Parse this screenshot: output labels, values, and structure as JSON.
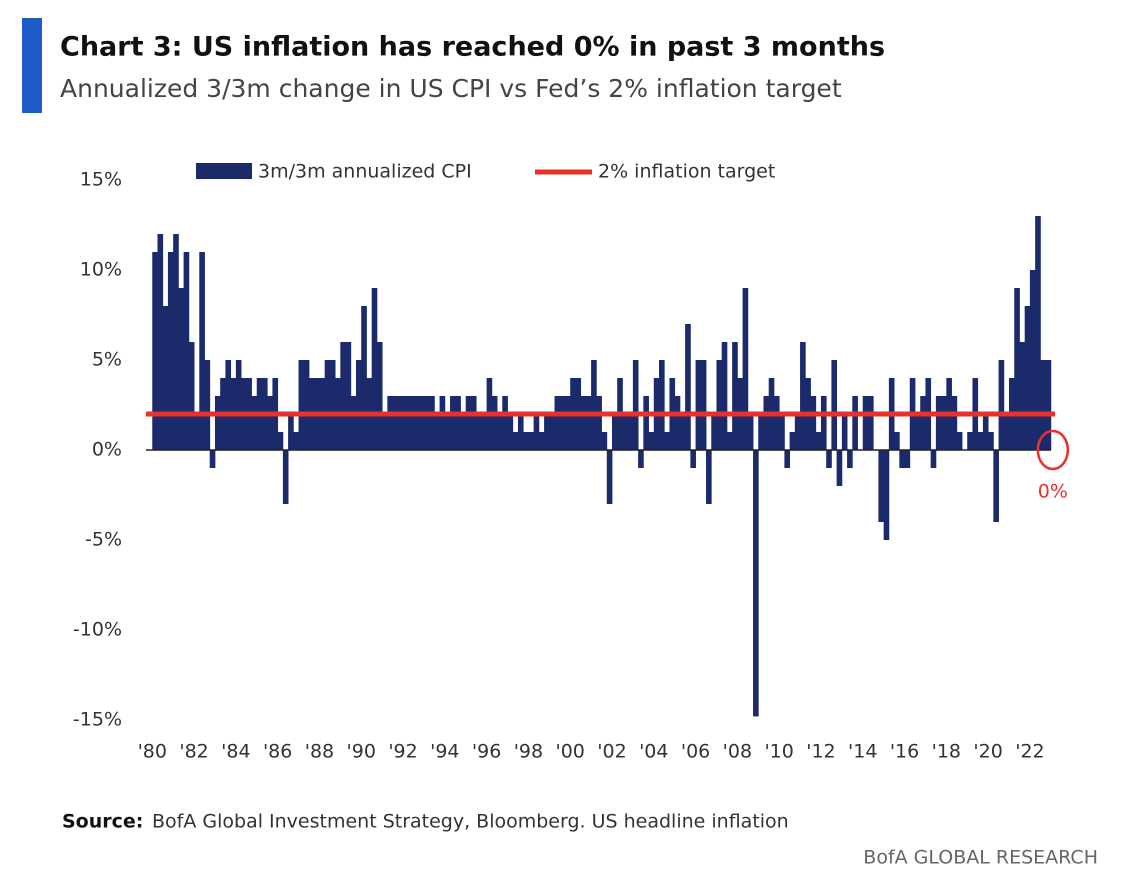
{
  "chart_data": {
    "type": "bar",
    "title": "Chart 3: US inflation has reached 0% in past 3 months",
    "subtitle": "Annualized 3/3m change in US CPI vs Fed’s 2% inflation target",
    "x": [
      1980,
      1980.25,
      1980.5,
      1980.75,
      1981,
      1981.25,
      1981.5,
      1981.75,
      1982,
      1982.25,
      1982.5,
      1982.75,
      1983,
      1983.25,
      1983.5,
      1983.75,
      1984,
      1984.25,
      1984.5,
      1984.75,
      1985,
      1985.25,
      1985.5,
      1985.75,
      1986,
      1986.25,
      1986.5,
      1986.75,
      1987,
      1987.25,
      1987.5,
      1987.75,
      1988,
      1988.25,
      1988.5,
      1988.75,
      1989,
      1989.25,
      1989.5,
      1989.75,
      1990,
      1990.25,
      1990.5,
      1990.75,
      1991,
      1991.25,
      1991.5,
      1991.75,
      1992,
      1992.25,
      1992.5,
      1992.75,
      1993,
      1993.25,
      1993.5,
      1993.75,
      1994,
      1994.25,
      1994.5,
      1994.75,
      1995,
      1995.25,
      1995.5,
      1995.75,
      1996,
      1996.25,
      1996.5,
      1996.75,
      1997,
      1997.25,
      1997.5,
      1997.75,
      1998,
      1998.25,
      1998.5,
      1998.75,
      1999,
      1999.25,
      1999.5,
      1999.75,
      2000,
      2000.25,
      2000.5,
      2000.75,
      2001,
      2001.25,
      2001.5,
      2001.75,
      2002,
      2002.25,
      2002.5,
      2002.75,
      2003,
      2003.25,
      2003.5,
      2003.75,
      2004,
      2004.25,
      2004.5,
      2004.75,
      2005,
      2005.25,
      2005.5,
      2005.75,
      2006,
      2006.25,
      2006.5,
      2006.75,
      2007,
      2007.25,
      2007.5,
      2007.75,
      2008,
      2008.25,
      2008.5,
      2008.75,
      2009,
      2009.25,
      2009.5,
      2009.75,
      2010,
      2010.25,
      2010.5,
      2010.75,
      2011,
      2011.25,
      2011.5,
      2011.75,
      2012,
      2012.25,
      2012.5,
      2012.75,
      2013,
      2013.25,
      2013.5,
      2013.75,
      2014,
      2014.25,
      2014.5,
      2014.75,
      2015,
      2015.25,
      2015.5,
      2015.75,
      2016,
      2016.25,
      2016.5,
      2016.75,
      2017,
      2017.25,
      2017.5,
      2017.75,
      2018,
      2018.25,
      2018.5,
      2018.75,
      2019,
      2019.25,
      2019.5,
      2019.75,
      2020,
      2020.25,
      2020.5,
      2020.75,
      2021,
      2021.25,
      2021.5,
      2021.75,
      2022,
      2022.25,
      2022.5,
      2022.75,
      2023
    ],
    "series": [
      {
        "name": "3m/3m annualized CPI",
        "color": "#1b2a6b",
        "values": [
          11,
          12,
          8,
          11,
          12,
          9,
          11,
          6,
          2,
          11,
          5,
          -1,
          3,
          4,
          5,
          4,
          5,
          4,
          4,
          3,
          4,
          4,
          3,
          4,
          1,
          -3,
          2,
          1,
          5,
          5,
          4,
          4,
          4,
          5,
          5,
          4,
          6,
          6,
          3,
          5,
          8,
          4,
          9,
          6,
          2,
          3,
          3,
          3,
          3,
          3,
          3,
          3,
          3,
          3,
          2,
          3,
          2,
          3,
          3,
          2,
          3,
          3,
          2,
          2,
          4,
          3,
          2,
          3,
          2,
          1,
          2,
          1,
          1,
          2,
          1,
          2,
          2,
          3,
          3,
          3,
          4,
          4,
          3,
          3,
          5,
          3,
          1,
          -3,
          2,
          4,
          2,
          2,
          5,
          -1,
          3,
          1,
          4,
          5,
          1,
          4,
          3,
          2,
          7,
          -1,
          5,
          5,
          -3,
          2,
          5,
          6,
          1,
          6,
          4,
          9,
          2,
          -14.8,
          2,
          3,
          4,
          3,
          2,
          -1,
          1,
          2,
          6,
          4,
          3,
          1,
          3,
          -1,
          5,
          -2,
          2,
          -1,
          3,
          0,
          3,
          3,
          0,
          -4,
          -5,
          4,
          1,
          -1,
          -1,
          4,
          2,
          3,
          4,
          -1,
          3,
          3,
          4,
          3,
          1,
          0,
          1,
          4,
          1,
          2,
          1,
          -4,
          5,
          2,
          4,
          9,
          6,
          8,
          10,
          13,
          5,
          5,
          0
        ]
      },
      {
        "name": "2% inflation target",
        "color": "#e8312a",
        "x": [
          1979.7,
          2023.2
        ],
        "values": [
          2,
          2
        ]
      }
    ],
    "xlim": [
      1979.7,
      2023.2
    ],
    "xticks": [
      {
        "value": 1980,
        "label": "'80"
      },
      {
        "value": 1982,
        "label": "'82"
      },
      {
        "value": 1984,
        "label": "'84"
      },
      {
        "value": 1986,
        "label": "'86"
      },
      {
        "value": 1988,
        "label": "'88"
      },
      {
        "value": 1990,
        "label": "'90"
      },
      {
        "value": 1992,
        "label": "'92"
      },
      {
        "value": 1994,
        "label": "'94"
      },
      {
        "value": 1996,
        "label": "'96"
      },
      {
        "value": 1998,
        "label": "'98"
      },
      {
        "value": 2000,
        "label": "'00"
      },
      {
        "value": 2002,
        "label": "'02"
      },
      {
        "value": 2004,
        "label": "'04"
      },
      {
        "value": 2006,
        "label": "'06"
      },
      {
        "value": 2008,
        "label": "'08"
      },
      {
        "value": 2010,
        "label": "'10"
      },
      {
        "value": 2012,
        "label": "'12"
      },
      {
        "value": 2014,
        "label": "'14"
      },
      {
        "value": 2016,
        "label": "'16"
      },
      {
        "value": 2018,
        "label": "'18"
      },
      {
        "value": 2020,
        "label": "'20"
      },
      {
        "value": 2022,
        "label": "'22"
      }
    ],
    "ylim": [
      -15,
      15
    ],
    "yticks": [
      {
        "value": 15,
        "label": "15%"
      },
      {
        "value": 10,
        "label": "10%"
      },
      {
        "value": 5,
        "label": "5%"
      },
      {
        "value": 0,
        "label": "0%"
      },
      {
        "value": -5,
        "label": "-5%"
      },
      {
        "value": -10,
        "label": "-10%"
      },
      {
        "value": -15,
        "label": "-15%"
      }
    ],
    "annotation": "0%",
    "source_label": "Source:",
    "source": "BofA Global Investment Strategy, Bloomberg. US headline inflation",
    "footer": "BofA GLOBAL RESEARCH"
  }
}
